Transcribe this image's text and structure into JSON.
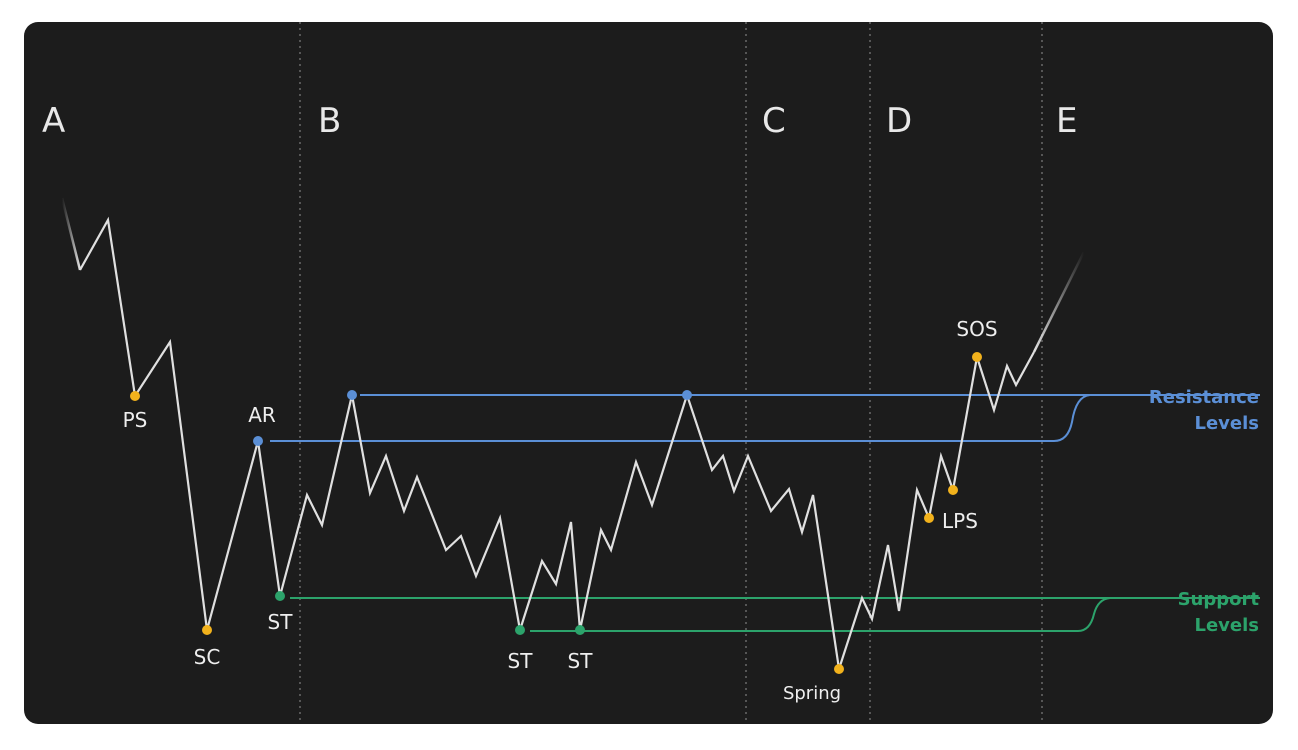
{
  "colors": {
    "background": "#1c1c1c",
    "price": "#e0e0e0",
    "resistance": "#5b8fd6",
    "support": "#2ca36b",
    "event_point": "#f2b21c",
    "phase_divider": "#6a6a6a",
    "text": "#eeeeee"
  },
  "phases": [
    "A",
    "B",
    "C",
    "D",
    "E"
  ],
  "events": {
    "ps": "PS",
    "sc": "SC",
    "ar": "AR",
    "st1": "ST",
    "st2": "ST",
    "st3": "ST",
    "spring": "Spring",
    "lps": "LPS",
    "sos": "SOS"
  },
  "legend": {
    "resistance_line1": "Resistance",
    "resistance_line2": "Levels",
    "support_line1": "Support",
    "support_line2": "Levels"
  }
}
